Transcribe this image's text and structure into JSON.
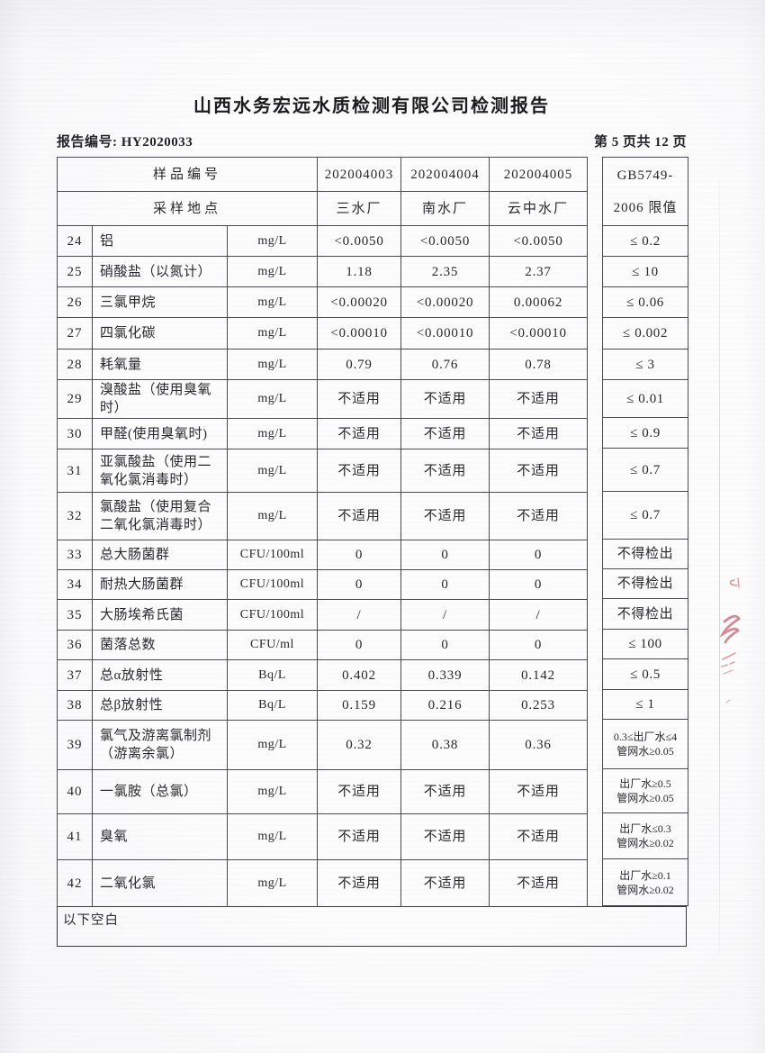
{
  "page": {
    "title": "山西水务宏远水质检测有限公司检测报告",
    "report_no": "报告编号: HY2020033",
    "page_indicator": "第 5 页共 12 页"
  },
  "table": {
    "header": {
      "sample_no_label": "样品编号",
      "sample_ids": [
        "202004003",
        "202004004",
        "202004005"
      ],
      "location_label": "采样地点",
      "locations": [
        "三水厂",
        "南水厂",
        "云中水厂"
      ],
      "limit_header_line1": "GB5749-",
      "limit_header_line2": "2006 限值"
    },
    "rows": [
      {
        "no": "24",
        "name": "铝",
        "unit": "mg/L",
        "values": [
          "<0.0050",
          "<0.0050",
          "<0.0050"
        ],
        "limit": "≤ 0.2"
      },
      {
        "no": "25",
        "name": "硝酸盐（以氮计）",
        "unit": "mg/L",
        "values": [
          "1.18",
          "2.35",
          "2.37"
        ],
        "limit": "≤ 10"
      },
      {
        "no": "26",
        "name": "三氯甲烷",
        "unit": "mg/L",
        "values": [
          "<0.00020",
          "<0.00020",
          "0.00062"
        ],
        "limit": "≤ 0.06"
      },
      {
        "no": "27",
        "name": "四氯化碳",
        "unit": "mg/L",
        "values": [
          "<0.00010",
          "<0.00010",
          "<0.00010"
        ],
        "limit": "≤ 0.002"
      },
      {
        "no": "28",
        "name": "耗氧量",
        "unit": "mg/L",
        "values": [
          "0.79",
          "0.76",
          "0.78"
        ],
        "limit": "≤ 3"
      },
      {
        "no": "29",
        "name": "溴酸盐（使用臭氧时）",
        "unit": "mg/L",
        "values": [
          "不适用",
          "不适用",
          "不适用"
        ],
        "limit": "≤ 0.01"
      },
      {
        "no": "30",
        "name": "甲醛(使用臭氧时)",
        "unit": "mg/L",
        "values": [
          "不适用",
          "不适用",
          "不适用"
        ],
        "limit": "≤ 0.9"
      },
      {
        "no": "31",
        "name": "亚氯酸盐（使用二氧化氯消毒时）",
        "unit": "mg/L",
        "values": [
          "不适用",
          "不适用",
          "不适用"
        ],
        "limit": "≤ 0.7"
      },
      {
        "no": "32",
        "name": "氯酸盐（使用复合二氧化氯消毒时）",
        "unit": "mg/L",
        "values": [
          "不适用",
          "不适用",
          "不适用"
        ],
        "limit": "≤ 0.7"
      },
      {
        "no": "33",
        "name": "总大肠菌群",
        "unit": "CFU/100ml",
        "values": [
          "0",
          "0",
          "0"
        ],
        "limit": "不得检出"
      },
      {
        "no": "34",
        "name": "耐热大肠菌群",
        "unit": "CFU/100ml",
        "values": [
          "0",
          "0",
          "0"
        ],
        "limit": "不得检出"
      },
      {
        "no": "35",
        "name": "大肠埃希氏菌",
        "unit": "CFU/100ml",
        "values": [
          "/",
          "/",
          "/"
        ],
        "limit": "不得检出"
      },
      {
        "no": "36",
        "name": "菌落总数",
        "unit": "CFU/ml",
        "values": [
          "0",
          "0",
          "0"
        ],
        "limit": "≤ 100"
      },
      {
        "no": "37",
        "name": "总α放射性",
        "unit": "Bq/L",
        "values": [
          "0.402",
          "0.339",
          "0.142"
        ],
        "limit": "≤ 0.5"
      },
      {
        "no": "38",
        "name": "总β放射性",
        "unit": "Bq/L",
        "values": [
          "0.159",
          "0.216",
          "0.253"
        ],
        "limit": "≤ 1"
      },
      {
        "no": "39",
        "name": "氯气及游离氯制剂（游离余氯）",
        "unit": "mg/L",
        "values": [
          "0.32",
          "0.38",
          "0.36"
        ],
        "limit": [
          "0.3≤出厂水≤4",
          "管网水≥0.05"
        ]
      },
      {
        "no": "40",
        "name": "一氯胺（总氯）",
        "unit": "mg/L",
        "values": [
          "不适用",
          "不适用",
          "不适用"
        ],
        "limit": [
          "出厂水≥0.5",
          "管网水≥0.05"
        ]
      },
      {
        "no": "41",
        "name": "臭氧",
        "unit": "mg/L",
        "values": [
          "不适用",
          "不适用",
          "不适用"
        ],
        "limit": [
          "出厂水≤0.3",
          "管网水≥0.02"
        ]
      },
      {
        "no": "42",
        "name": "二氧化氯",
        "unit": "mg/L",
        "values": [
          "不适用",
          "不适用",
          "不适用"
        ],
        "limit": [
          "出厂水≥0.1",
          "管网水≥0.02"
        ]
      }
    ],
    "footer_note": "以下空白"
  },
  "colors": {
    "stamp_red": "#c24a58",
    "ink": "#28282c",
    "border": "#4c4c50"
  }
}
